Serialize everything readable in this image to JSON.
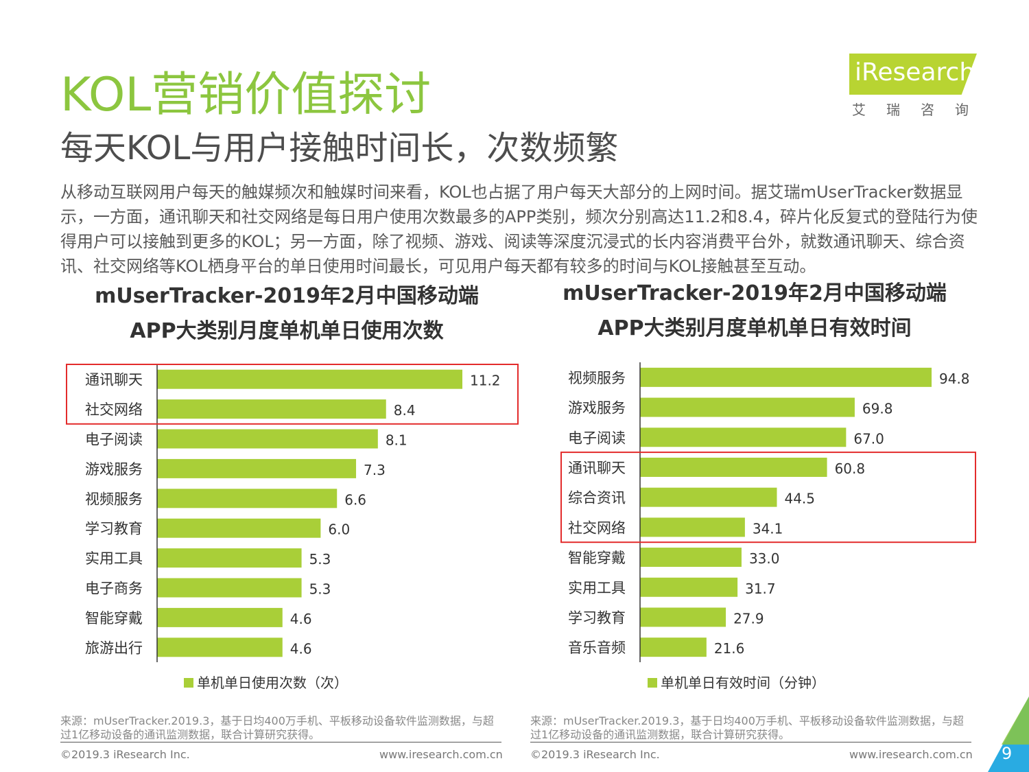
{
  "header": {
    "title": "KOL营销价值探讨",
    "subtitle": "每天KOL与用户接触时间长，次数频繁",
    "logo_text": "iResearch",
    "logo_sub": "艾瑞咨询"
  },
  "paragraph": "从移动互联网用户每天的触媒频次和触媒时间来看，KOL也占据了用户每天大部分的上网时间。据艾瑞mUserTracker数据显示，一方面，通讯聊天和社交网络是每日用户使用次数最多的APP类别，频次分别高达11.2和8.4，碎片化反复式的登陆行为使得用户可以接触到更多的KOL；另一方面，除了视频、游戏、阅读等深度沉浸式的长内容消费平台外，就数通讯聊天、综合资讯、社交网络等KOL栖身平台的单日使用时间最长，可见用户每天都有较多的时间与KOL接触甚至互动。",
  "chart_data": [
    {
      "type": "bar",
      "orientation": "horizontal",
      "title_line1": "mUserTracker-2019年2月中国移动端",
      "title_line2": "APP大类别月度单机单日使用次数",
      "categories": [
        "通讯聊天",
        "社交网络",
        "电子阅读",
        "游戏服务",
        "视频服务",
        "学习教育",
        "实用工具",
        "电子商务",
        "智能穿戴",
        "旅游出行"
      ],
      "values": [
        11.2,
        8.4,
        8.1,
        7.3,
        6.6,
        6.0,
        5.3,
        5.3,
        4.6,
        4.6
      ],
      "value_labels": [
        "11.2",
        "8.4",
        "8.1",
        "7.3",
        "6.6",
        "6.0",
        "5.3",
        "5.3",
        "4.6",
        "4.6"
      ],
      "legend": "单机单日使用次数（次）",
      "legend_position": "bottom",
      "xlim": [
        0,
        11.2
      ],
      "highlight_categories": [
        "通讯聊天",
        "社交网络"
      ],
      "bar_color": "#a9cf38",
      "highlight_color": "#e32b2b",
      "source": "来源：mUserTracker.2019.3，基于日均400万手机、平板移动设备软件监测数据，与超过1亿移动设备的通讯监测数据，联合计算研究获得。"
    },
    {
      "type": "bar",
      "orientation": "horizontal",
      "title_line1": "mUserTracker-2019年2月中国移动端",
      "title_line2": "APP大类别月度单机单日有效时间",
      "categories": [
        "视频服务",
        "游戏服务",
        "电子阅读",
        "通讯聊天",
        "综合资讯",
        "社交网络",
        "智能穿戴",
        "实用工具",
        "学习教育",
        "音乐音频"
      ],
      "values": [
        94.8,
        69.8,
        67.0,
        60.8,
        44.5,
        34.1,
        33.0,
        31.7,
        27.9,
        21.6
      ],
      "value_labels": [
        "94.8",
        "69.8",
        "67.0",
        "60.8",
        "44.5",
        "34.1",
        "33.0",
        "31.7",
        "27.9",
        "21.6"
      ],
      "legend": "单机单日有效时间（分钟）",
      "legend_position": "bottom",
      "xlim": [
        0,
        94.8
      ],
      "highlight_categories": [
        "通讯聊天",
        "综合资讯",
        "社交网络"
      ],
      "bar_color": "#a9cf38",
      "highlight_color": "#e32b2b",
      "source": "来源：mUserTracker.2019.3，基于日均400万手机、平板移动设备软件监测数据，与超过1亿移动设备的通讯监测数据，联合计算研究获得。"
    }
  ],
  "footer": {
    "copyright": "©2019.3 iResearch Inc.",
    "website": "www.iresearch.com.cn",
    "page_number": "9"
  },
  "colors": {
    "brand_green": "#8cc63f",
    "corner_blue": "#29abe2"
  }
}
